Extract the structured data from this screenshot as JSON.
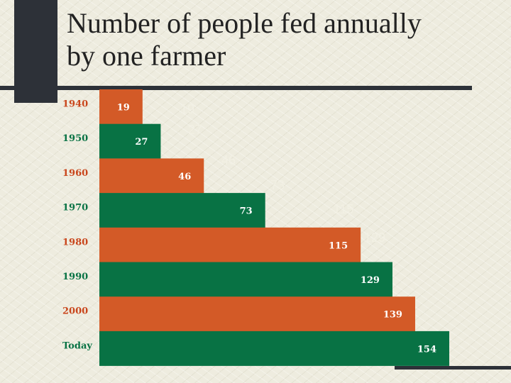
{
  "slide": {
    "title_line1": "Number of people fed annually",
    "title_line2": "by one farmer"
  },
  "colors": {
    "orange": "#d35a27",
    "green": "#087244",
    "category_text": "#c9461c",
    "ghost_text": "#f2f0e4"
  },
  "chart_data": {
    "type": "bar",
    "orientation": "horizontal",
    "categories": [
      "1940",
      "1950",
      "1960",
      "1970",
      "1980",
      "1990",
      "2000",
      "Today"
    ],
    "values": [
      19,
      27,
      46,
      73,
      115,
      129,
      139,
      154
    ],
    "series_colors": [
      "orange",
      "green",
      "orange",
      "green",
      "orange",
      "green",
      "orange",
      "green"
    ],
    "category_label_colors": [
      "category_text",
      "green",
      "category_text",
      "green",
      "category_text",
      "green",
      "category_text",
      "green"
    ],
    "xlim": [
      0,
      154
    ],
    "grid": false,
    "legend": "none",
    "ghost_labels": [
      "19",
      "27",
      "46",
      "73",
      "115",
      "129"
    ]
  }
}
